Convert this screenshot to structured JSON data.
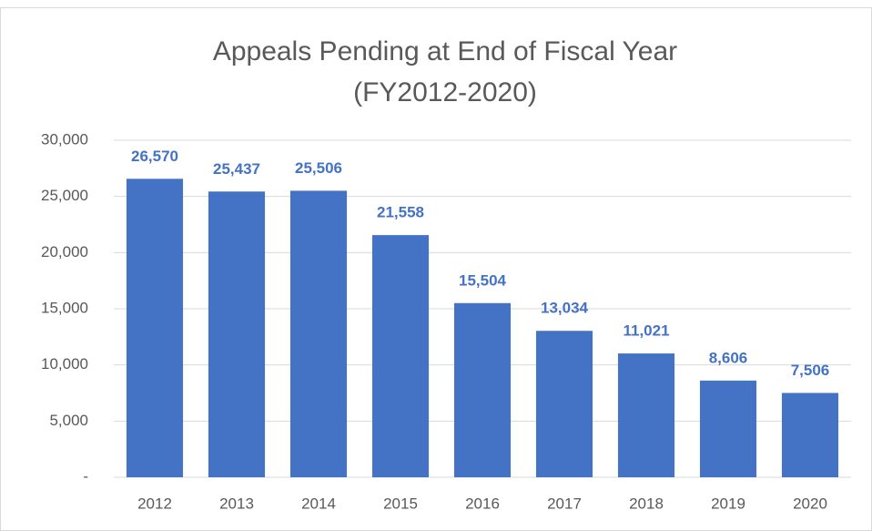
{
  "chart_data": {
    "type": "bar",
    "title": "Appeals Pending at End of Fiscal Year",
    "subtitle": "(FY2012-2020)",
    "categories": [
      "2012",
      "2013",
      "2014",
      "2015",
      "2016",
      "2017",
      "2018",
      "2019",
      "2020"
    ],
    "values": [
      26570,
      25437,
      25506,
      21558,
      15504,
      13034,
      11021,
      8606,
      7506
    ],
    "value_labels": [
      "26,570",
      "25,437",
      "25,506",
      "21,558",
      "15,504",
      "13,034",
      "11,021",
      "8,606",
      "7,506"
    ],
    "color": "#4472c4",
    "ylim": [
      0,
      30000
    ],
    "yticks": [
      {
        "value": 0,
        "label": "-"
      },
      {
        "value": 5000,
        "label": "5,000"
      },
      {
        "value": 10000,
        "label": "10,000"
      },
      {
        "value": 15000,
        "label": "15,000"
      },
      {
        "value": 20000,
        "label": "20,000"
      },
      {
        "value": 25000,
        "label": "25,000"
      },
      {
        "value": 30000,
        "label": "30,000"
      }
    ],
    "grid": true
  }
}
